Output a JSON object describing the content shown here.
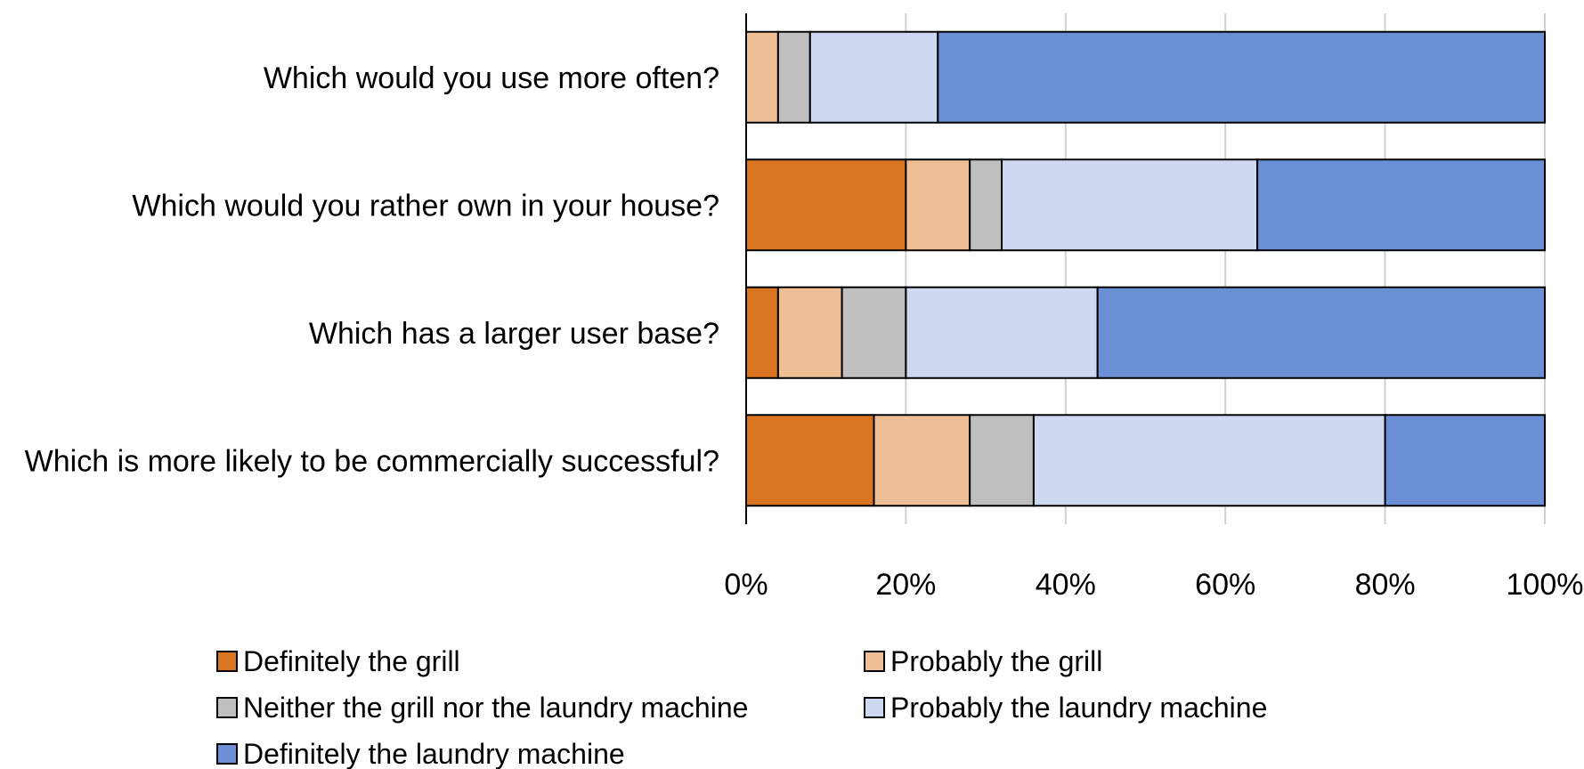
{
  "chart_data": {
    "type": "bar",
    "orientation": "horizontal",
    "stacked": "percent",
    "categories": [
      "Which would you use more often?",
      "Which would you rather own in your house?",
      "Which has a larger user base?",
      "Which is more likely to be commercially successful?"
    ],
    "series": [
      {
        "name": "Definitely the grill",
        "color": "#d97521",
        "values": [
          0,
          20,
          4,
          16
        ]
      },
      {
        "name": "Probably the grill",
        "color": "#eebf95",
        "values": [
          4,
          8,
          8,
          12
        ]
      },
      {
        "name": "Neither the grill nor the laundry machine",
        "color": "#bfbfbf",
        "values": [
          4,
          4,
          8,
          8
        ]
      },
      {
        "name": "Probably the laundry machine",
        "color": "#cdd9f0",
        "values": [
          16,
          32,
          24,
          44
        ]
      },
      {
        "name": "Definitely the laundry machine",
        "color": "#6a8fd4",
        "values": [
          76,
          36,
          56,
          20
        ]
      }
    ],
    "xlim": [
      0,
      100
    ],
    "xticks": [
      "0%",
      "20%",
      "40%",
      "60%",
      "80%",
      "100%"
    ],
    "grid": true,
    "legend": "bottom",
    "title": "",
    "xlabel": "",
    "ylabel": ""
  }
}
